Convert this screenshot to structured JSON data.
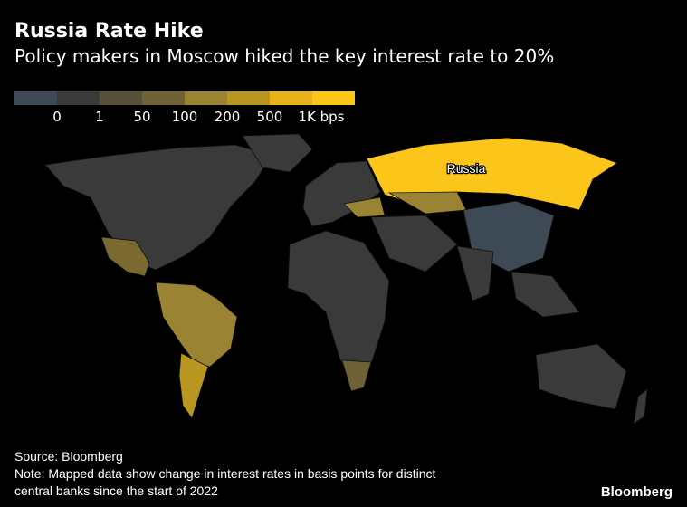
{
  "header": {
    "title": "Russia Rate Hike",
    "subtitle": "Policy makers in Moscow hiked the key interest rate to 20%"
  },
  "legend": {
    "colors": [
      "#3d4a55",
      "#3a3a3a",
      "#57503a",
      "#6e6236",
      "#9a8434",
      "#b8961f",
      "#e8b21a",
      "#fcc51a"
    ],
    "labels": [
      "0",
      "1",
      "50",
      "100",
      "200",
      "500",
      "1K bps"
    ]
  },
  "map": {
    "highlight_label": "Russia",
    "regions": [
      {
        "name": "north-america",
        "color": "#3a3a3a"
      },
      {
        "name": "mexico",
        "color": "#7a6a30"
      },
      {
        "name": "south-america",
        "color": "#9a8434"
      },
      {
        "name": "argentina",
        "color": "#b8961f"
      },
      {
        "name": "europe",
        "color": "#3a3a3a"
      },
      {
        "name": "ukraine",
        "color": "#9a8434"
      },
      {
        "name": "africa",
        "color": "#3a3a3a"
      },
      {
        "name": "south-africa",
        "color": "#6e6236"
      },
      {
        "name": "russia",
        "color": "#fcc51a"
      },
      {
        "name": "kazakhstan",
        "color": "#9a8434"
      },
      {
        "name": "china",
        "color": "#3d4a55"
      },
      {
        "name": "india",
        "color": "#3a3a3a"
      },
      {
        "name": "australia",
        "color": "#3a3a3a"
      }
    ]
  },
  "footer": {
    "source": "Source: Bloomberg",
    "note_line1": "Note: Mapped data show change in interest rates in basis points for distinct",
    "note_line2": "central banks since the start of 2022",
    "brand": "Bloomberg"
  }
}
